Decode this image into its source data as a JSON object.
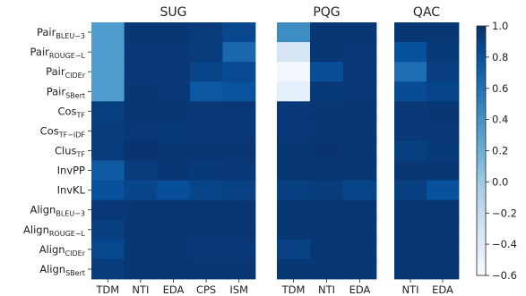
{
  "chart_data": {
    "type": "heatmap",
    "panels": [
      {
        "title": "SUG",
        "columns": [
          "TDM",
          "NTI",
          "EDA",
          "CPS",
          "ISM"
        ],
        "values": [
          [
            0.33,
            0.96,
            0.96,
            0.93,
            0.86
          ],
          [
            0.33,
            0.95,
            0.95,
            0.93,
            0.66
          ],
          [
            0.33,
            0.95,
            0.95,
            0.88,
            0.84
          ],
          [
            0.33,
            0.96,
            0.95,
            0.76,
            0.79
          ],
          [
            0.91,
            0.96,
            0.96,
            0.95,
            0.95
          ],
          [
            0.93,
            0.95,
            0.94,
            0.95,
            0.95
          ],
          [
            0.93,
            0.97,
            0.96,
            0.96,
            0.96
          ],
          [
            0.74,
            0.93,
            0.96,
            0.94,
            0.95
          ],
          [
            0.8,
            0.87,
            0.81,
            0.88,
            0.9
          ],
          [
            0.95,
            0.96,
            0.96,
            0.96,
            0.96
          ],
          [
            0.91,
            0.96,
            0.96,
            0.96,
            0.96
          ],
          [
            0.86,
            0.96,
            0.96,
            0.95,
            0.95
          ],
          [
            0.93,
            0.96,
            0.96,
            0.96,
            0.96
          ]
        ]
      },
      {
        "title": "PQG",
        "columns": [
          "TDM",
          "NTI",
          "EDA"
        ],
        "values": [
          [
            0.43,
            0.96,
            0.96
          ],
          [
            -0.33,
            0.96,
            0.95
          ],
          [
            -0.55,
            0.82,
            0.95
          ],
          [
            -0.45,
            0.94,
            0.95
          ],
          [
            0.95,
            0.96,
            0.96
          ],
          [
            0.95,
            0.96,
            0.96
          ],
          [
            0.96,
            0.97,
            0.96
          ],
          [
            0.96,
            0.96,
            0.96
          ],
          [
            0.91,
            0.93,
            0.88
          ],
          [
            0.96,
            0.96,
            0.96
          ],
          [
            0.96,
            0.96,
            0.96
          ],
          [
            0.9,
            0.96,
            0.96
          ],
          [
            0.96,
            0.96,
            0.96
          ]
        ]
      },
      {
        "title": "QAC",
        "columns": [
          "NTI",
          "EDA"
        ],
        "values": [
          [
            0.96,
            0.96
          ],
          [
            0.8,
            0.94
          ],
          [
            0.62,
            0.92
          ],
          [
            0.83,
            0.88
          ],
          [
            0.95,
            0.96
          ],
          [
            0.95,
            0.95
          ],
          [
            0.91,
            0.94
          ],
          [
            0.96,
            0.96
          ],
          [
            0.91,
            0.8
          ],
          [
            0.96,
            0.96
          ],
          [
            0.96,
            0.96
          ],
          [
            0.96,
            0.96
          ],
          [
            0.96,
            0.96
          ]
        ]
      }
    ],
    "rows": [
      {
        "base": "Pair",
        "sub": "BLEU−3"
      },
      {
        "base": "Pair",
        "sub": "ROUGE−L"
      },
      {
        "base": "Pair",
        "sub": "CIDEr"
      },
      {
        "base": "Pair",
        "sub": "SBert"
      },
      {
        "base": "Cos",
        "sub": "TF"
      },
      {
        "base": "Cos",
        "sub": "TF−IDF"
      },
      {
        "base": "Clus",
        "sub": "TF"
      },
      {
        "base": "InvPP",
        "sub": ""
      },
      {
        "base": "InvKL",
        "sub": ""
      },
      {
        "base": "Align",
        "sub": "BLEU−3"
      },
      {
        "base": "Align",
        "sub": "ROUGE−L"
      },
      {
        "base": "Align",
        "sub": "CIDEr"
      },
      {
        "base": "Align",
        "sub": "SBert"
      }
    ],
    "colorbar": {
      "colormap": "Blues",
      "vmin": -0.6,
      "vmax": 1.0,
      "ticks": [
        1.0,
        0.8,
        0.6,
        0.4,
        0.2,
        0.0,
        -0.2,
        -0.4,
        -0.6
      ],
      "tick_labels": [
        "1.0",
        "0.8",
        "0.6",
        "0.4",
        "0.2",
        "0.0",
        "−0.2",
        "−0.4",
        "−0.6"
      ]
    }
  }
}
